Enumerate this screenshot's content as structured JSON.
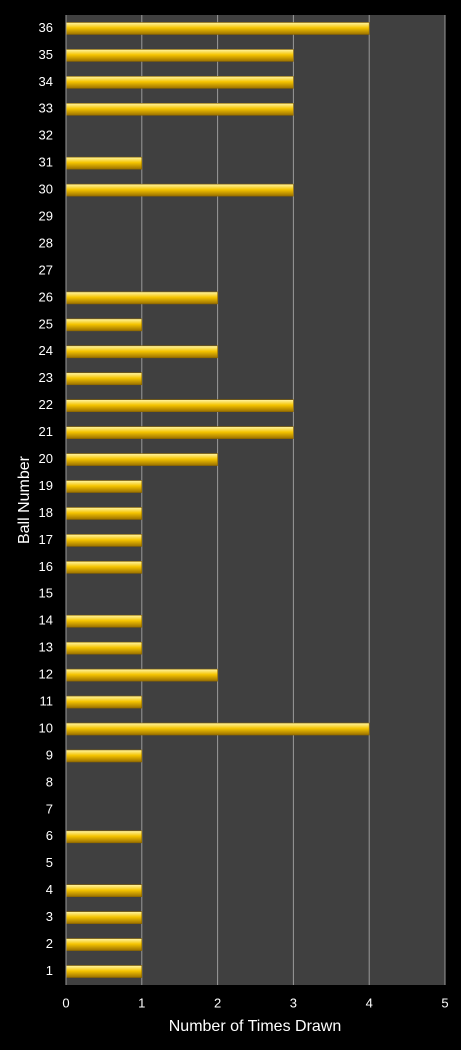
{
  "chart_data": {
    "type": "hbar",
    "x_label": "Number of Times Drawn",
    "y_label": "Ball Number",
    "categories": [
      "1",
      "2",
      "3",
      "4",
      "5",
      "6",
      "7",
      "8",
      "9",
      "10",
      "11",
      "12",
      "13",
      "14",
      "15",
      "16",
      "17",
      "18",
      "19",
      "20",
      "21",
      "22",
      "23",
      "24",
      "25",
      "26",
      "27",
      "28",
      "29",
      "30",
      "31",
      "32",
      "33",
      "34",
      "35",
      "36"
    ],
    "values": [
      1,
      1,
      1,
      1,
      0,
      1,
      0,
      0,
      1,
      4,
      1,
      2,
      1,
      1,
      0,
      1,
      1,
      1,
      1,
      2,
      3,
      3,
      1,
      2,
      1,
      2,
      0,
      0,
      0,
      3,
      1,
      0,
      3,
      3,
      3,
      4
    ],
    "color": "#f5c400",
    "xlim": [
      0,
      5
    ],
    "xticks": [
      0,
      1,
      2,
      3,
      4,
      5
    ],
    "grid": true
  }
}
